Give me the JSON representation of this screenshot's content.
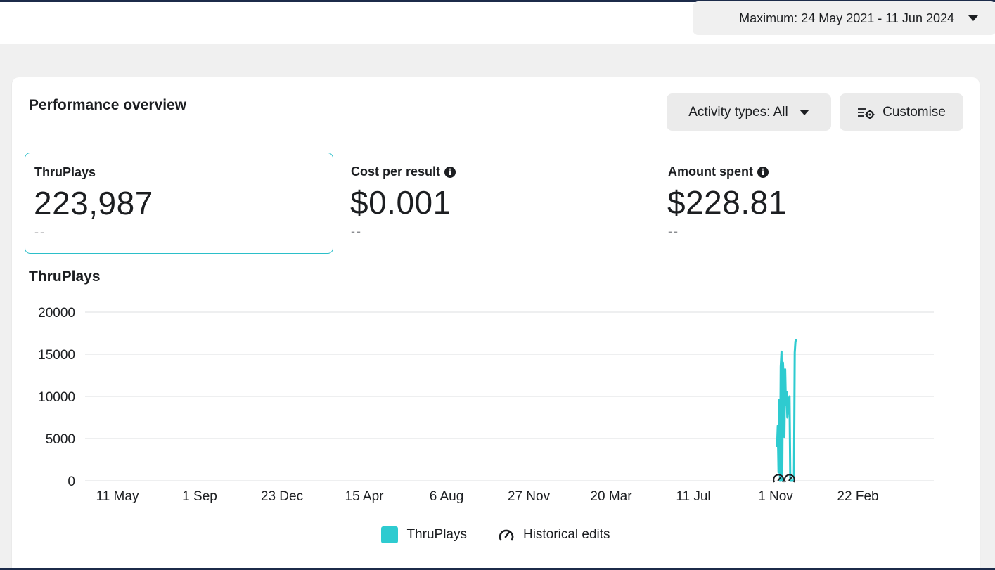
{
  "date_range": {
    "label": "Maximum: 24 May 2021 - 11 Jun 2024"
  },
  "overview": {
    "title": "Performance overview",
    "activity_label": "Activity types: All",
    "customise_label": "Customise",
    "metrics": [
      {
        "label": "ThruPlays",
        "value": "223,987",
        "delta": "--",
        "info": false,
        "selected": true
      },
      {
        "label": "Cost per result",
        "value": "$0.001",
        "delta": "--",
        "info": true,
        "selected": false
      },
      {
        "label": "Amount spent",
        "value": "$228.81",
        "delta": "--",
        "info": true,
        "selected": false
      }
    ]
  },
  "colors": {
    "series": "#2ecbd0",
    "selected_border": "#2bbfc9"
  },
  "chart_data": {
    "type": "line",
    "title": "ThruPlays",
    "xlabel": "",
    "ylabel": "",
    "ylim": [
      0,
      20000
    ],
    "yticks": [
      "0",
      "5000",
      "10000",
      "15000",
      "20000"
    ],
    "xticks": [
      "11 May",
      "1 Sep",
      "23 Dec",
      "15 Apr",
      "6 Aug",
      "27 Nov",
      "20 Mar",
      "11 Jul",
      "1 Nov",
      "22 Feb"
    ],
    "grid": true,
    "legend": "bottom",
    "series": [
      {
        "name": "ThruPlays",
        "x": [
          "2023-10-26",
          "2023-10-27",
          "2023-10-28",
          "2023-10-29",
          "2023-10-30",
          "2023-10-31",
          "2023-11-01",
          "2023-11-02",
          "2023-11-03",
          "2023-11-04",
          "2023-11-05",
          "2023-11-06",
          "2023-11-07",
          "2023-11-08",
          "2023-11-09",
          "2023-11-10",
          "2023-11-11",
          "2023-11-12",
          "2023-11-13",
          "2023-11-14",
          "2023-11-15",
          "2023-11-16",
          "2023-11-17",
          "2023-11-18",
          "2023-11-19",
          "2023-11-20",
          "2023-11-21"
        ],
        "values": [
          4000,
          6500,
          1000,
          9600,
          0,
          13500,
          15300,
          0,
          14000,
          12000,
          5200,
          13200,
          9000,
          10500,
          7500,
          9800,
          8000,
          10000,
          0,
          0,
          0,
          0,
          0,
          0,
          15200,
          16500,
          16800
        ]
      }
    ],
    "legend_entries": [
      "ThruPlays",
      "Historical edits"
    ]
  }
}
